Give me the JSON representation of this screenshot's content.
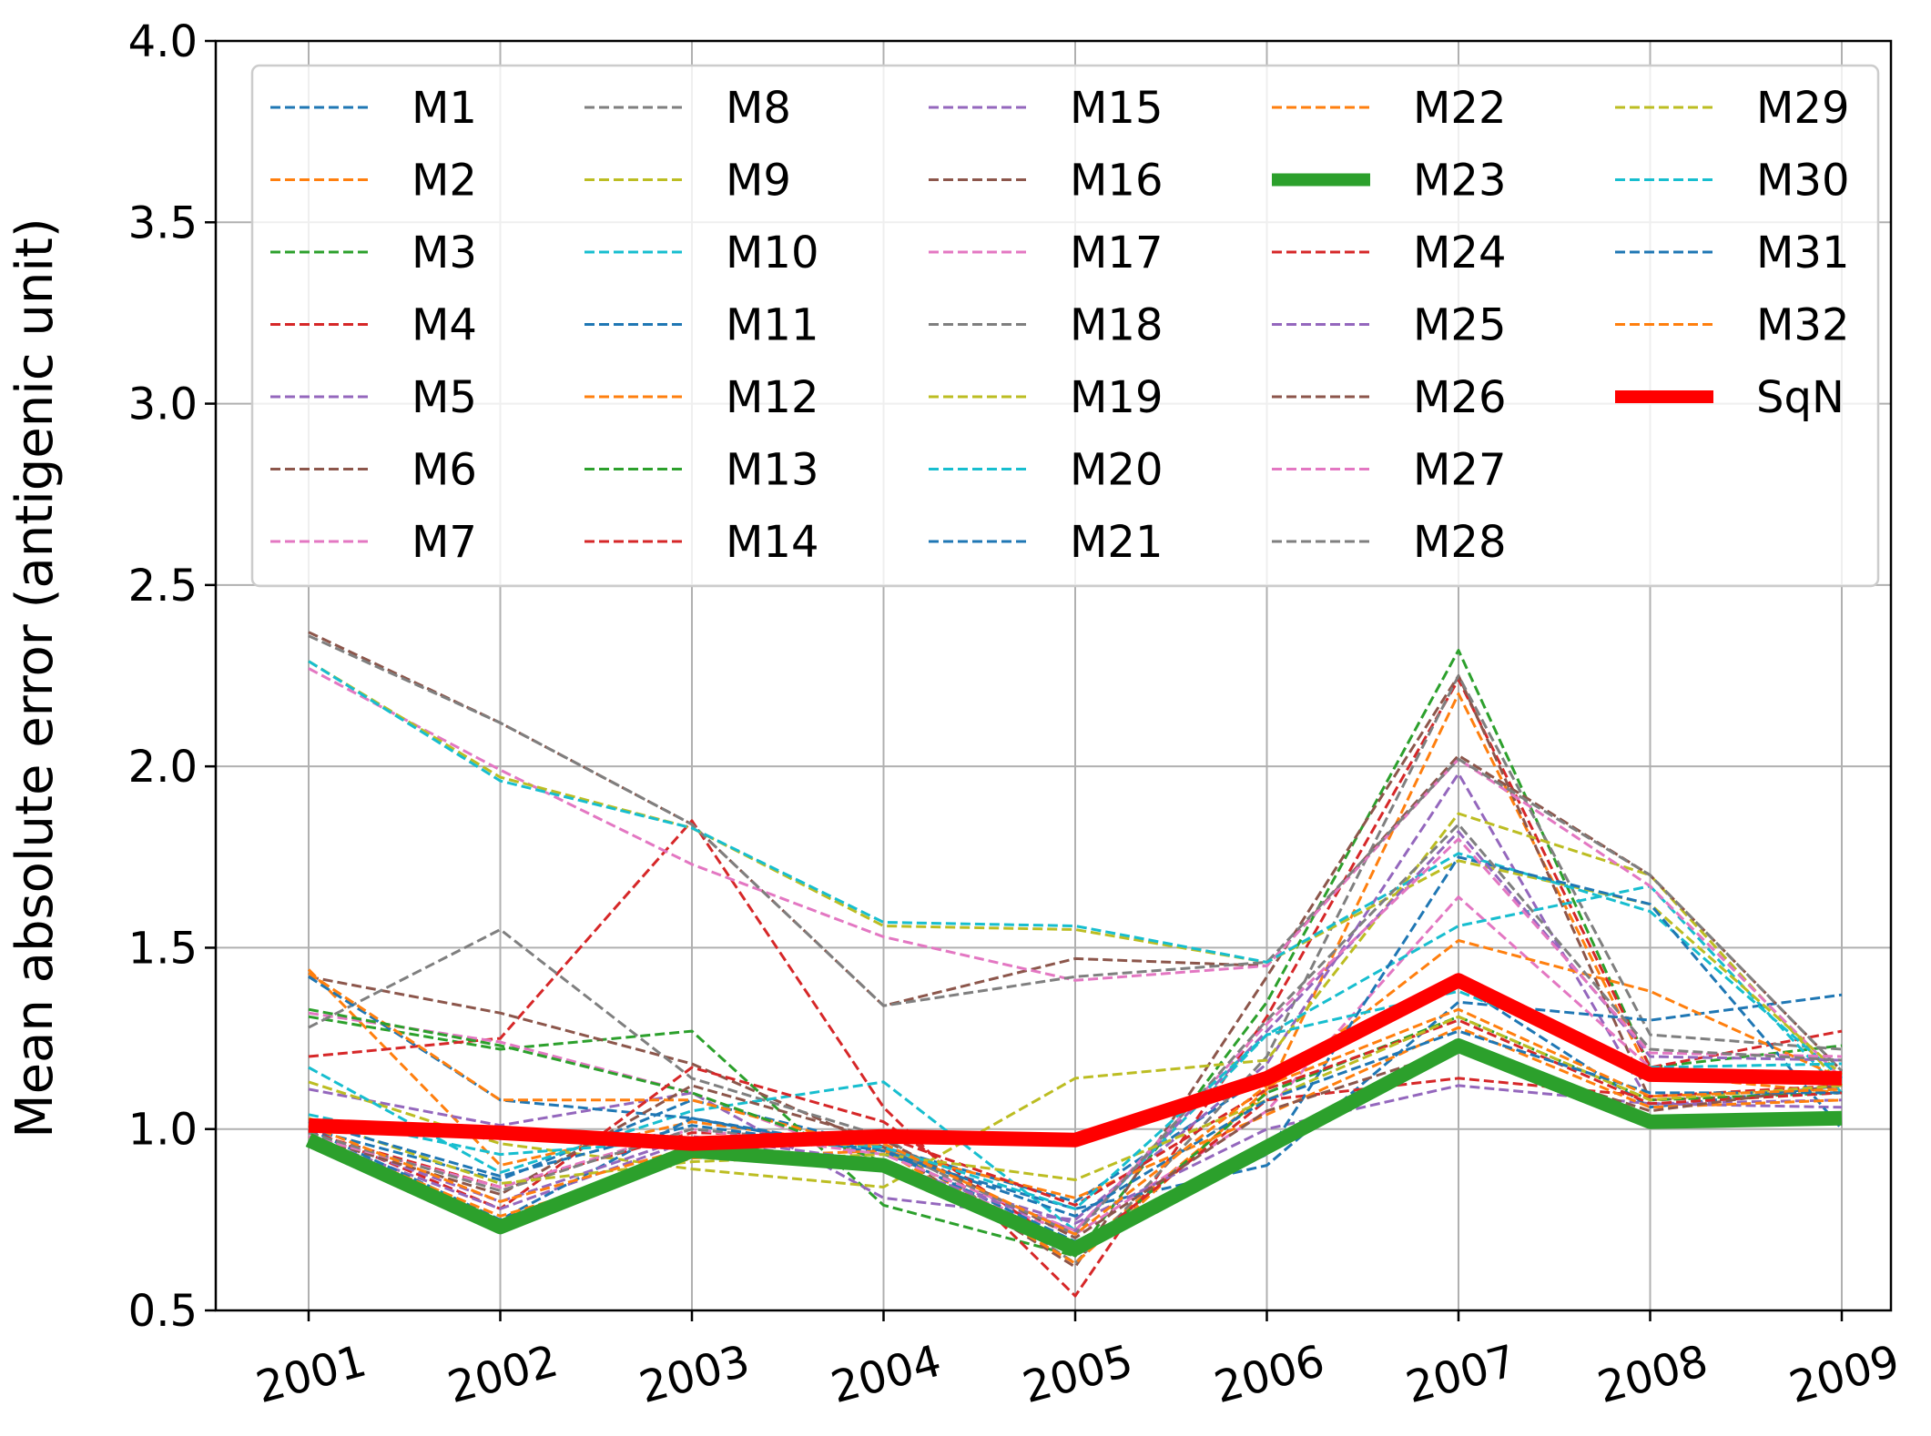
{
  "chart_data": {
    "type": "line",
    "title": "",
    "xlabel": "",
    "ylabel": "Mean absolute error (antigenic unit)",
    "x": [
      2001,
      2002,
      2003,
      2004,
      2005,
      2006,
      2007,
      2008,
      2009
    ],
    "xticks": [
      "2001",
      "2002",
      "2003",
      "2004",
      "2005",
      "2006",
      "2007",
      "2008",
      "2009"
    ],
    "ylim": [
      0.5,
      4.0
    ],
    "yticks": [
      "0.5",
      "1.0",
      "1.5",
      "2.0",
      "2.5",
      "3.0",
      "3.5",
      "4.0"
    ],
    "grid": true,
    "legend": "top, 5 columns",
    "series": [
      {
        "name": "M1",
        "color": "#1f77b4",
        "style": "dashed",
        "values": [
          1.0,
          0.86,
          1.08,
          0.95,
          0.8,
          1.15,
          1.4,
          1.06,
          1.12
        ]
      },
      {
        "name": "M2",
        "color": "#ff7f0e",
        "style": "dashed",
        "values": [
          1.44,
          0.9,
          1.02,
          0.95,
          0.66,
          1.1,
          2.2,
          1.15,
          1.1
        ]
      },
      {
        "name": "M3",
        "color": "#2ca02c",
        "style": "dashed",
        "values": [
          1.31,
          1.22,
          1.27,
          0.79,
          0.65,
          1.35,
          2.32,
          1.17,
          1.23
        ]
      },
      {
        "name": "M4",
        "color": "#d62728",
        "style": "dashed",
        "values": [
          1.2,
          1.25,
          1.85,
          1.06,
          0.54,
          1.31,
          2.24,
          1.17,
          1.27
        ]
      },
      {
        "name": "M5",
        "color": "#9467bd",
        "style": "dashed",
        "values": [
          1.11,
          1.01,
          1.1,
          0.81,
          0.75,
          1.18,
          1.98,
          1.07,
          1.08
        ]
      },
      {
        "name": "M6",
        "color": "#8c564b",
        "style": "dashed",
        "values": [
          1.42,
          1.32,
          1.18,
          0.95,
          0.62,
          1.42,
          2.25,
          1.08,
          1.1
        ]
      },
      {
        "name": "M7",
        "color": "#e377c2",
        "style": "dashed",
        "values": [
          1.32,
          1.24,
          1.1,
          0.9,
          0.71,
          1.05,
          1.64,
          1.17,
          1.12
        ]
      },
      {
        "name": "M8",
        "color": "#7f7f7f",
        "style": "dashed",
        "values": [
          1.28,
          1.55,
          1.14,
          0.98,
          0.63,
          1.2,
          2.25,
          1.26,
          1.22
        ]
      },
      {
        "name": "M9",
        "color": "#bcbd22",
        "style": "dashed",
        "values": [
          1.13,
          0.96,
          0.89,
          0.84,
          1.14,
          1.19,
          1.87,
          1.7,
          1.12
        ]
      },
      {
        "name": "M10",
        "color": "#17becf",
        "style": "dashed",
        "values": [
          1.17,
          0.88,
          1.05,
          1.13,
          0.72,
          1.26,
          1.56,
          1.67,
          1.1
        ]
      },
      {
        "name": "M11",
        "color": "#1f77b4",
        "style": "dashed",
        "values": [
          1.42,
          1.08,
          1.03,
          0.93,
          0.78,
          0.9,
          1.35,
          1.3,
          1.37
        ]
      },
      {
        "name": "M12",
        "color": "#ff7f0e",
        "style": "dashed",
        "values": [
          1.43,
          1.08,
          1.08,
          0.94,
          0.63,
          1.11,
          1.52,
          1.38,
          1.14
        ]
      },
      {
        "name": "M13",
        "color": "#2ca02c",
        "style": "dashed",
        "values": [
          1.33,
          1.23,
          1.1,
          0.91,
          0.65,
          1.1,
          1.31,
          1.08,
          1.1
        ]
      },
      {
        "name": "M14",
        "color": "#d62728",
        "style": "dashed",
        "values": [
          1.0,
          0.78,
          1.17,
          1.02,
          0.66,
          1.08,
          1.14,
          1.09,
          1.12
        ]
      },
      {
        "name": "M15",
        "color": "#9467bd",
        "style": "dashed",
        "values": [
          0.98,
          0.78,
          0.97,
          0.9,
          0.74,
          1.0,
          1.12,
          1.07,
          1.06
        ]
      },
      {
        "name": "M16",
        "color": "#8c564b",
        "style": "dashed",
        "values": [
          2.37,
          2.12,
          1.84,
          1.34,
          1.47,
          1.45,
          2.03,
          1.7,
          1.16
        ]
      },
      {
        "name": "M17",
        "color": "#e377c2",
        "style": "dashed",
        "values": [
          2.27,
          1.99,
          1.73,
          1.53,
          1.41,
          1.45,
          2.02,
          1.67,
          1.14
        ]
      },
      {
        "name": "M18",
        "color": "#7f7f7f",
        "style": "dashed",
        "values": [
          2.36,
          2.12,
          1.84,
          1.34,
          1.42,
          1.46,
          2.02,
          1.7,
          1.16
        ]
      },
      {
        "name": "M19",
        "color": "#bcbd22",
        "style": "dashed",
        "values": [
          2.29,
          1.97,
          1.83,
          1.56,
          1.55,
          1.46,
          1.74,
          1.62,
          1.15
        ]
      },
      {
        "name": "M20",
        "color": "#17becf",
        "style": "dashed",
        "values": [
          2.29,
          1.96,
          1.83,
          1.57,
          1.56,
          1.46,
          1.76,
          1.6,
          1.14
        ]
      },
      {
        "name": "M21",
        "color": "#1f77b4",
        "style": "dashed",
        "values": [
          1.0,
          0.75,
          1.03,
          0.94,
          0.69,
          0.93,
          1.75,
          1.62,
          1.0
        ]
      },
      {
        "name": "M22",
        "color": "#ff7f0e",
        "style": "dashed",
        "values": [
          0.98,
          0.76,
          0.92,
          0.94,
          0.81,
          1.04,
          1.28,
          1.06,
          1.08
        ]
      },
      {
        "name": "M23",
        "color": "#2ca02c",
        "style": "solid-thick",
        "values": [
          0.97,
          0.73,
          0.94,
          0.9,
          0.67,
          0.95,
          1.23,
          1.02,
          1.03
        ]
      },
      {
        "name": "M24",
        "color": "#d62728",
        "style": "dashed",
        "values": [
          0.99,
          0.84,
          0.99,
          0.98,
          0.79,
          1.11,
          1.3,
          1.07,
          1.1
        ]
      },
      {
        "name": "M25",
        "color": "#9467bd",
        "style": "dashed",
        "values": [
          0.99,
          0.8,
          0.98,
          0.91,
          0.72,
          1.27,
          1.82,
          1.2,
          1.19
        ]
      },
      {
        "name": "M26",
        "color": "#8c564b",
        "style": "dashed",
        "values": [
          0.98,
          0.82,
          1.12,
          0.97,
          0.7,
          1.05,
          1.22,
          1.05,
          1.12
        ]
      },
      {
        "name": "M27",
        "color": "#e377c2",
        "style": "dashed",
        "values": [
          0.98,
          0.84,
          1.0,
          0.93,
          0.72,
          1.29,
          1.8,
          1.21,
          1.2
        ]
      },
      {
        "name": "M28",
        "color": "#7f7f7f",
        "style": "dashed",
        "values": [
          0.99,
          0.83,
          1.0,
          0.95,
          0.71,
          1.3,
          1.84,
          1.22,
          1.19
        ]
      },
      {
        "name": "M29",
        "color": "#bcbd22",
        "style": "dashed",
        "values": [
          1.03,
          0.85,
          0.91,
          0.93,
          0.86,
          1.08,
          1.31,
          1.08,
          1.12
        ]
      },
      {
        "name": "M30",
        "color": "#17becf",
        "style": "dashed",
        "values": [
          1.04,
          0.93,
          0.97,
          0.95,
          0.78,
          1.26,
          1.38,
          1.17,
          1.18
        ]
      },
      {
        "name": "M31",
        "color": "#1f77b4",
        "style": "dashed",
        "values": [
          1.02,
          0.87,
          1.01,
          0.94,
          0.76,
          1.08,
          1.27,
          1.1,
          1.1
        ]
      },
      {
        "name": "M32",
        "color": "#ff7f0e",
        "style": "dashed",
        "values": [
          1.01,
          0.8,
          0.95,
          0.96,
          0.71,
          1.12,
          1.33,
          1.09,
          1.11
        ]
      },
      {
        "name": "SqN",
        "color": "#ff0000",
        "style": "solid-thick",
        "values": [
          1.01,
          0.99,
          0.96,
          0.98,
          0.97,
          1.14,
          1.41,
          1.15,
          1.14
        ]
      }
    ]
  }
}
